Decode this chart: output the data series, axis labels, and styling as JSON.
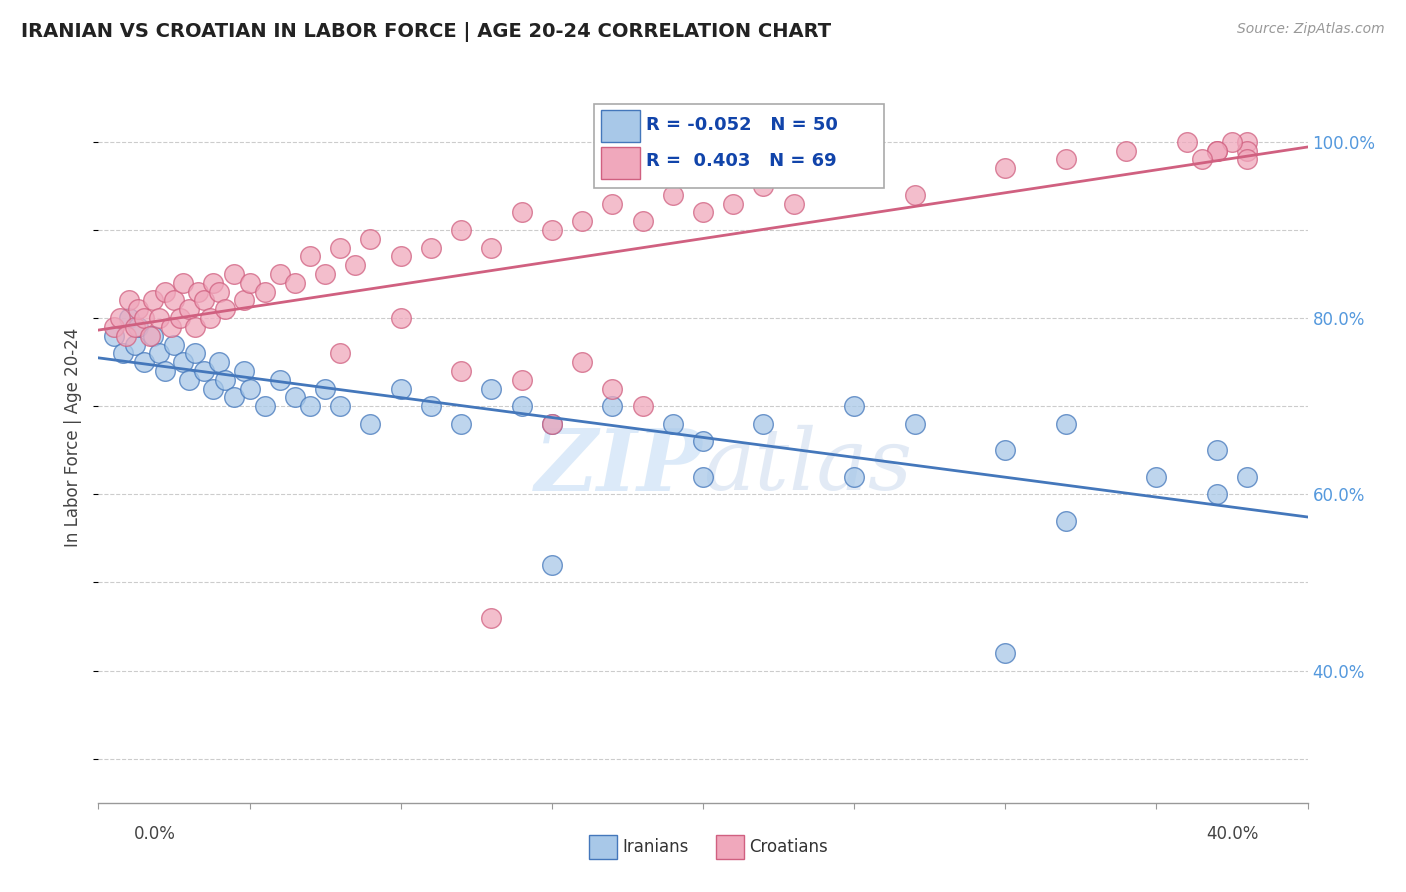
{
  "title": "IRANIAN VS CROATIAN IN LABOR FORCE | AGE 20-24 CORRELATION CHART",
  "source": "Source: ZipAtlas.com",
  "ylabel": "In Labor Force | Age 20-24",
  "yticks_labels": [
    "40.0%",
    "60.0%",
    "80.0%",
    "100.0%"
  ],
  "ytick_values": [
    0.4,
    0.6,
    0.8,
    1.0
  ],
  "xmin": 0.0,
  "xmax": 0.4,
  "ymin": 0.25,
  "ymax": 1.08,
  "legend_r_iranian": "-0.052",
  "legend_n_iranian": "50",
  "legend_r_croatian": "0.403",
  "legend_n_croatian": "69",
  "color_iranian": "#a8c8e8",
  "color_croatian": "#f0a8bc",
  "line_color_iranian": "#4477bb",
  "line_color_croatian": "#d06080",
  "watermark_zip": "ZIP",
  "watermark_atlas": "atlas",
  "iranians_x": [
    0.005,
    0.008,
    0.01,
    0.012,
    0.013,
    0.015,
    0.018,
    0.02,
    0.022,
    0.025,
    0.028,
    0.03,
    0.032,
    0.035,
    0.038,
    0.04,
    0.042,
    0.045,
    0.048,
    0.05,
    0.055,
    0.06,
    0.065,
    0.07,
    0.075,
    0.08,
    0.09,
    0.1,
    0.11,
    0.12,
    0.13,
    0.14,
    0.15,
    0.17,
    0.19,
    0.2,
    0.22,
    0.25,
    0.27,
    0.3,
    0.32,
    0.35,
    0.37,
    0.38,
    0.15,
    0.2,
    0.25,
    0.3,
    0.32,
    0.37
  ],
  "iranians_y": [
    0.78,
    0.76,
    0.8,
    0.77,
    0.79,
    0.75,
    0.78,
    0.76,
    0.74,
    0.77,
    0.75,
    0.73,
    0.76,
    0.74,
    0.72,
    0.75,
    0.73,
    0.71,
    0.74,
    0.72,
    0.7,
    0.73,
    0.71,
    0.7,
    0.72,
    0.7,
    0.68,
    0.72,
    0.7,
    0.68,
    0.72,
    0.7,
    0.68,
    0.7,
    0.68,
    0.66,
    0.68,
    0.7,
    0.68,
    0.65,
    0.68,
    0.62,
    0.65,
    0.62,
    0.52,
    0.62,
    0.62,
    0.42,
    0.57,
    0.6
  ],
  "croatians_x": [
    0.005,
    0.007,
    0.009,
    0.01,
    0.012,
    0.013,
    0.015,
    0.017,
    0.018,
    0.02,
    0.022,
    0.024,
    0.025,
    0.027,
    0.028,
    0.03,
    0.032,
    0.033,
    0.035,
    0.037,
    0.038,
    0.04,
    0.042,
    0.045,
    0.048,
    0.05,
    0.055,
    0.06,
    0.065,
    0.07,
    0.075,
    0.08,
    0.085,
    0.09,
    0.1,
    0.11,
    0.12,
    0.13,
    0.14,
    0.15,
    0.16,
    0.17,
    0.18,
    0.19,
    0.2,
    0.21,
    0.22,
    0.23,
    0.25,
    0.27,
    0.3,
    0.32,
    0.34,
    0.36,
    0.37,
    0.38,
    0.38,
    0.38,
    0.375,
    0.37,
    0.365,
    0.08,
    0.1,
    0.12,
    0.14,
    0.16,
    0.18,
    0.13,
    0.15,
    0.17
  ],
  "croatians_y": [
    0.79,
    0.8,
    0.78,
    0.82,
    0.79,
    0.81,
    0.8,
    0.78,
    0.82,
    0.8,
    0.83,
    0.79,
    0.82,
    0.8,
    0.84,
    0.81,
    0.79,
    0.83,
    0.82,
    0.8,
    0.84,
    0.83,
    0.81,
    0.85,
    0.82,
    0.84,
    0.83,
    0.85,
    0.84,
    0.87,
    0.85,
    0.88,
    0.86,
    0.89,
    0.87,
    0.88,
    0.9,
    0.88,
    0.92,
    0.9,
    0.91,
    0.93,
    0.91,
    0.94,
    0.92,
    0.93,
    0.95,
    0.93,
    0.96,
    0.94,
    0.97,
    0.98,
    0.99,
    1.0,
    0.99,
    1.0,
    0.99,
    0.98,
    1.0,
    0.99,
    0.98,
    0.76,
    0.8,
    0.74,
    0.73,
    0.75,
    0.7,
    0.46,
    0.68,
    0.72
  ]
}
